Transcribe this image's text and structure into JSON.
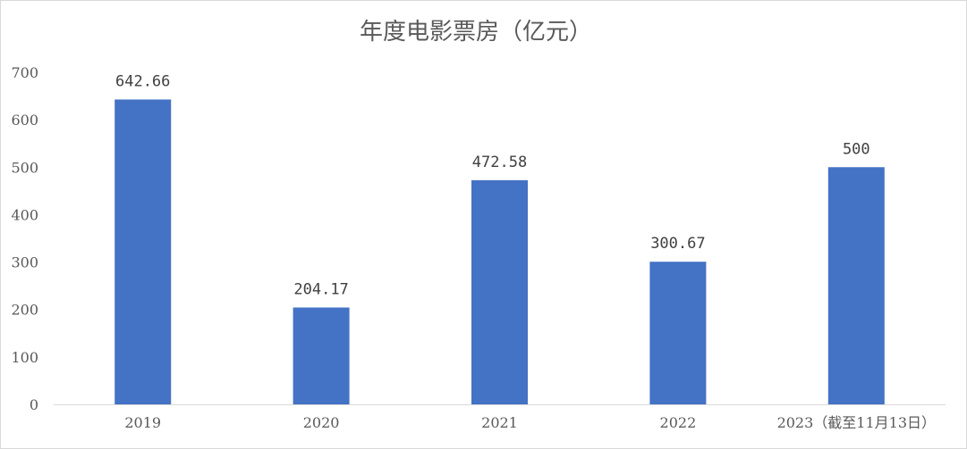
{
  "chart_data": {
    "type": "bar",
    "title": "年度电影票房（亿元）",
    "categories": [
      "2019",
      "2020",
      "2021",
      "2022",
      "2023（截至11月13日）"
    ],
    "values": [
      642.66,
      204.17,
      472.58,
      300.67,
      500
    ],
    "data_labels": [
      "642.66",
      "204.17",
      "472.58",
      "300.67",
      "500"
    ],
    "ylim": [
      0,
      700
    ],
    "y_ticks": [
      0,
      100,
      200,
      300,
      400,
      500,
      600,
      700
    ],
    "grid": false,
    "legend": "none",
    "bar_color": "#4472C4"
  }
}
